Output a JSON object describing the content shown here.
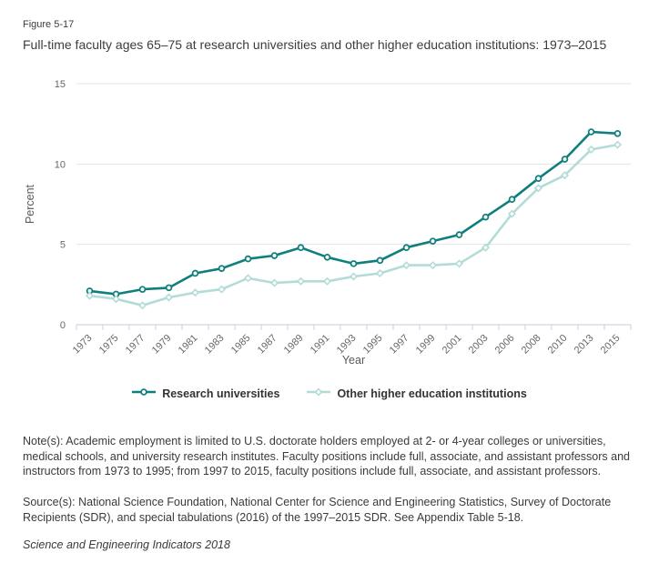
{
  "figure": {
    "label": "Figure 5-17",
    "title": "Full-time faculty ages 65–75 at research universities and other higher education institutions: 1973–2015"
  },
  "chart_data": {
    "type": "line",
    "title": "Full-time faculty ages 65–75 at research universities and other higher education institutions: 1973–2015",
    "categories": [
      "1973",
      "1975",
      "1977",
      "1979",
      "1981",
      "1983",
      "1985",
      "1987",
      "1989",
      "1991",
      "1993",
      "1995",
      "1997",
      "1999",
      "2001",
      "2003",
      "2006",
      "2008",
      "2010",
      "2013",
      "2015"
    ],
    "series": [
      {
        "name": "Research universities",
        "color": "#0e7f7c",
        "marker": "circle",
        "values": [
          2.1,
          1.9,
          2.2,
          2.3,
          3.2,
          3.5,
          4.1,
          4.3,
          4.8,
          4.2,
          3.8,
          4.0,
          4.8,
          5.2,
          5.6,
          6.7,
          7.8,
          9.1,
          10.3,
          12.0,
          11.9
        ]
      },
      {
        "name": "Other higher education institutions",
        "color": "#b3dcd7",
        "marker": "diamond",
        "values": [
          1.8,
          1.6,
          1.2,
          1.7,
          2.0,
          2.2,
          2.9,
          2.6,
          2.7,
          2.7,
          3.0,
          3.2,
          3.7,
          3.7,
          3.8,
          4.8,
          6.9,
          8.5,
          9.3,
          10.9,
          11.2
        ]
      }
    ],
    "xlabel": "Year",
    "ylabel": "Percent",
    "ylim": [
      0,
      15
    ],
    "yticks": [
      0,
      5,
      10,
      15
    ],
    "grid": "horizontal-only",
    "legend_position": "bottom",
    "colors": {
      "grid": "#e4e4e4",
      "axis": "#c4cee2",
      "tick_label": "#666666",
      "axis_title": "#595959"
    }
  },
  "notes": {
    "text": "Note(s): Academic employment is limited to U.S. doctorate holders employed at 2- or 4-year colleges or universities, medical schools, and university research institutes. Faculty positions include full, associate, and assistant professors and instructors from 1973 to 1995; from 1997 to 2015, faculty positions include full, associate, and assistant professors."
  },
  "sources": {
    "text": "Source(s): National Science Foundation, National Center for Science and Engineering Statistics, Survey of Doctorate Recipients (SDR), and special tabulations (2016) of the 1997–2015 SDR. See Appendix Table 5-18."
  },
  "footer": {
    "brand": "Science and Engineering Indicators 2018"
  }
}
